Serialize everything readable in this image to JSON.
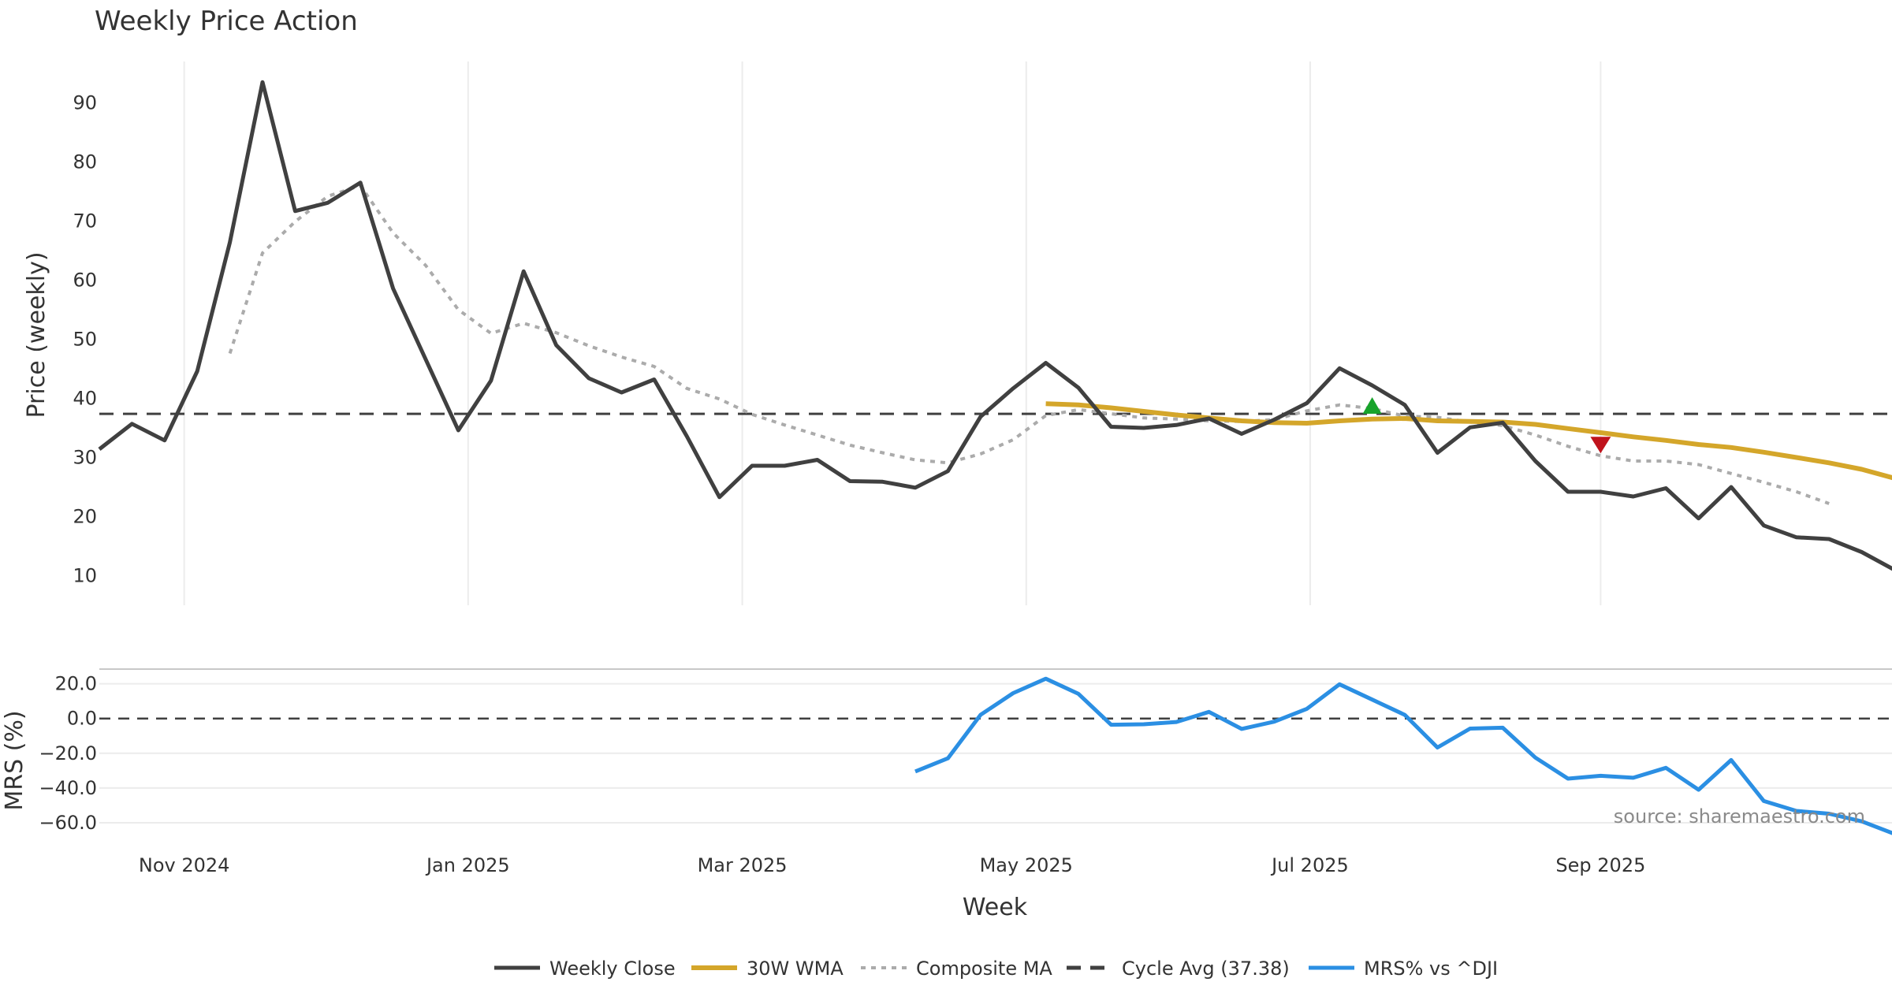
{
  "chart_data": {
    "type": "line",
    "title": "Weekly Price Action",
    "xlabel": "Week",
    "source": "source: sharemaestro.com",
    "x_ticks": [
      {
        "label": "Nov 2024",
        "w": 2.6
      },
      {
        "label": "Jan 2025",
        "w": 11.3
      },
      {
        "label": "Mar 2025",
        "w": 19.7
      },
      {
        "label": "May 2025",
        "w": 28.4
      },
      {
        "label": "Jul 2025",
        "w": 37.1
      },
      {
        "label": "Sep 2025",
        "w": 46.0
      }
    ],
    "price_panel": {
      "ylabel": "Price (weekly)",
      "ylim": [
        5,
        97
      ],
      "yticks": [
        10,
        20,
        30,
        40,
        50,
        60,
        70,
        80,
        90
      ],
      "series": [
        {
          "name": "Weekly Close",
          "color": "#404040",
          "start_week": 0,
          "values": [
            31.4,
            35.7,
            32.9,
            44.6,
            66.4,
            93.5,
            71.7,
            73.1,
            76.5,
            58.6,
            46.6,
            34.6,
            43.0,
            61.5,
            49.0,
            43.4,
            41.0,
            43.2,
            33.6,
            23.3,
            28.6,
            28.6,
            29.6,
            26.0,
            25.9,
            24.9,
            27.7,
            36.9,
            41.7,
            46.0,
            41.8,
            35.2,
            35.0,
            35.5,
            36.6,
            34.0,
            36.4,
            39.2,
            45.1,
            42.2,
            38.9,
            30.8,
            35.1,
            35.9,
            29.4,
            24.2,
            24.2,
            23.4,
            24.8,
            19.7,
            25.0,
            18.5,
            16.5,
            16.2,
            14.0,
            11.0
          ]
        },
        {
          "name": "30W WMA",
          "color": "#D4A62A",
          "start_week": 29,
          "values": [
            39.1,
            38.9,
            38.4,
            37.8,
            37.2,
            36.7,
            36.2,
            35.9,
            35.8,
            36.2,
            36.5,
            36.6,
            36.2,
            36.1,
            36.0,
            35.6,
            34.9,
            34.2,
            33.5,
            32.9,
            32.2,
            31.7,
            30.9,
            30.0,
            29.1,
            28.0,
            26.5
          ]
        },
        {
          "name": "Composite MA",
          "color": "#ababab",
          "start_week": 4,
          "values": [
            47.6,
            64.6,
            69.9,
            74.2,
            76.0,
            68.0,
            62.5,
            55.0,
            51.0,
            52.7,
            51.1,
            48.9,
            47.0,
            45.4,
            41.7,
            39.9,
            37.3,
            35.5,
            33.8,
            32.1,
            30.8,
            29.6,
            29.1,
            30.6,
            33.0,
            37.1,
            38.1,
            37.4,
            36.7,
            36.5,
            36.2,
            36.1,
            36.4,
            37.9,
            38.9,
            38.3,
            37.0,
            36.8,
            36.0,
            35.4,
            33.8,
            31.9,
            30.3,
            29.4,
            29.4,
            28.8,
            27.3,
            25.8,
            24.2,
            22.2
          ]
        },
        {
          "name": "Cycle Avg (37.38)",
          "color": "#404040",
          "value": 37.38
        }
      ],
      "markers": [
        {
          "type": "buy",
          "shape": "triangle-up",
          "color": "#18A32B",
          "week": 39,
          "value": 38.6
        },
        {
          "type": "sell",
          "shape": "triangle-down",
          "color": "#C0131C",
          "week": 46,
          "value": 32.3
        }
      ]
    },
    "mrs_panel": {
      "ylabel": "MRS (%)",
      "ylim": [
        -70,
        28
      ],
      "yticks": [
        20,
        0,
        -20,
        -40,
        -60
      ],
      "ytick_labels": [
        "20.0",
        "0.0",
        "−20.0",
        "−40.0",
        "−60.0"
      ],
      "zero_line": 0,
      "series": [
        {
          "name": "MRS% vs ^DJI",
          "color": "#2B8FE3",
          "start_week": 25,
          "values": [
            -30.5,
            -22.9,
            2.1,
            14.6,
            22.9,
            14.2,
            -3.6,
            -3.3,
            -2.0,
            3.8,
            -6.0,
            -1.8,
            5.6,
            19.7,
            10.9,
            2.1,
            -16.7,
            -5.8,
            -5.3,
            -22.5,
            -34.6,
            -33.0,
            -34.1,
            -28.4,
            -41.0,
            -23.9,
            -47.5,
            -53.2,
            -54.8,
            -59.2,
            -66.4
          ]
        }
      ]
    },
    "legend": [
      {
        "label": "Weekly Close",
        "color": "#404040",
        "style": "solid"
      },
      {
        "label": "30W WMA",
        "color": "#D4A62A",
        "style": "solid"
      },
      {
        "label": "Composite MA",
        "color": "#ababab",
        "style": "dotted"
      },
      {
        "label": "Cycle Avg (37.38)",
        "color": "#404040",
        "style": "dashed"
      },
      {
        "label": "MRS% vs ^DJI",
        "color": "#2B8FE3",
        "style": "solid"
      }
    ]
  }
}
